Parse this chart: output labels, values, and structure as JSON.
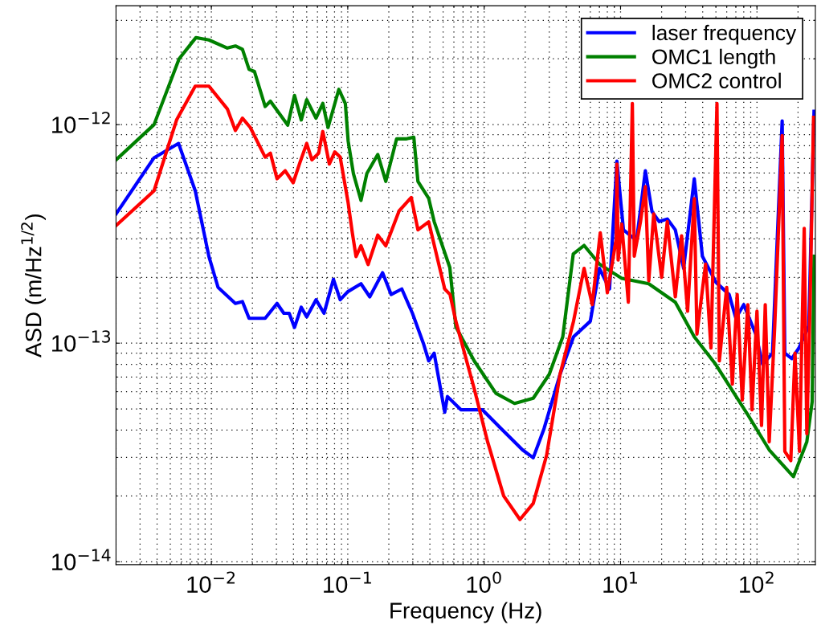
{
  "chart_data": {
    "type": "line",
    "xlabel": "Frequency (Hz)",
    "ylabel": "ASD (m/Hz$^{1/2}$)",
    "log": "xy",
    "grid": true,
    "legend": "top right",
    "line_style": "solid",
    "marker": "none",
    "xlim": [
      0.002,
      268
    ],
    "ylim": [
      9.7e-15,
      3.5e-12
    ],
    "xticks": [
      {
        "value": 0.01,
        "label": "10$^{−2}$"
      },
      {
        "value": 0.1,
        "label": "10$^{−1}$"
      },
      {
        "value": 1,
        "label": "10$^{0}$"
      },
      {
        "value": 10,
        "label": "10$^{1}$"
      },
      {
        "value": 100,
        "label": "10$^{2}$"
      }
    ],
    "yticks": [
      {
        "value": 1e-14,
        "label": "10$^{−14}$"
      },
      {
        "value": 1e-13,
        "label": "10$^{−13}$"
      },
      {
        "value": 1e-12,
        "label": "10$^{−12}$"
      }
    ],
    "series": [
      {
        "name": "laser frequency",
        "color": "#0000ff",
        "x": [
          0.002,
          0.0038,
          0.00575,
          0.00762,
          0.0096,
          0.0112,
          0.015,
          0.0169,
          0.0189,
          0.0248,
          0.0303,
          0.034,
          0.0372,
          0.0407,
          0.0456,
          0.05,
          0.0585,
          0.067,
          0.0785,
          0.088,
          0.1,
          0.125,
          0.145,
          0.18,
          0.208,
          0.249,
          0.298,
          0.358,
          0.392,
          0.43,
          0.514,
          0.538,
          0.675,
          0.97,
          1.33,
          1.91,
          2.29,
          2.75,
          3.6,
          4.52,
          6.0,
          7.0,
          8.3,
          9.4,
          10.5,
          13.1,
          15.2,
          17.0,
          19.2,
          22.0,
          25.2,
          29.0,
          34.7,
          39.8,
          50.0,
          62.5,
          70.0,
          80.0,
          98.0,
          110.0,
          130.0,
          153.0,
          160.0,
          180.0,
          203.0,
          240.0,
          262.0
        ],
        "values": [
          3.9e-13,
          7.05e-13,
          8.2e-13,
          4.98e-13,
          2.49e-13,
          1.8e-13,
          1.52e-13,
          1.55e-13,
          1.3e-13,
          1.3e-13,
          1.52e-13,
          1.37e-13,
          1.37e-13,
          1.18e-13,
          1.46e-13,
          1.32e-13,
          1.58e-13,
          1.37e-13,
          1.96e-13,
          1.58e-13,
          1.72e-13,
          1.87e-13,
          1.63e-13,
          2.1e-13,
          1.67e-13,
          1.77e-13,
          1.37e-13,
          1e-13,
          8.3e-14,
          9e-14,
          4.83e-14,
          5.7e-14,
          4.96e-14,
          4.96e-14,
          4.07e-14,
          3.25e-14,
          2.99e-14,
          4.07e-14,
          7.2e-14,
          1.07e-13,
          1.26e-13,
          2.2e-13,
          1.77e-13,
          6.8e-13,
          3.3e-13,
          2.95e-13,
          6.15e-13,
          4e-13,
          3.6e-13,
          3.7e-13,
          3.3e-13,
          2.2e-13,
          5.65e-13,
          2.5e-13,
          1.9e-13,
          1.67e-13,
          1.3e-13,
          1.5e-13,
          1.1e-13,
          8e-14,
          9e-14,
          1.04e-12,
          9e-14,
          8.5e-14,
          9.5e-14,
          1.2e-13,
          1.15e-12
        ]
      },
      {
        "name": "OMC1 length",
        "color": "#008000",
        "x": [
          0.002,
          0.0038,
          0.0058,
          0.0077,
          0.0096,
          0.0131,
          0.015,
          0.0169,
          0.0189,
          0.0207,
          0.0248,
          0.0271,
          0.0363,
          0.0407,
          0.0456,
          0.05,
          0.0585,
          0.0656,
          0.0717,
          0.086,
          0.096,
          0.1007,
          0.11,
          0.125,
          0.138,
          0.166,
          0.19,
          0.228,
          0.267,
          0.305,
          0.327,
          0.392,
          0.43,
          0.56,
          0.62,
          0.845,
          1.22,
          1.67,
          2.29,
          3.0,
          3.77,
          4.5,
          5.4,
          7.0,
          10.2,
          16.1,
          25.2,
          34.7,
          49.8,
          85.7,
          123.0,
          185.0,
          232.0,
          254.0,
          262.0
        ],
        "values": [
          6.9e-13,
          1e-12,
          2e-12,
          2.5e-12,
          2.44e-12,
          2.24e-12,
          2.29e-12,
          2.21e-12,
          1.79e-12,
          1.75e-12,
          1.21e-12,
          1.28e-12,
          9.95e-13,
          1.36e-12,
          1.05e-12,
          1.3e-12,
          1.07e-12,
          1.25e-12,
          9.7e-13,
          1.45e-12,
          1.25e-12,
          8.4e-13,
          5.97e-13,
          4.5e-13,
          5.97e-13,
          7.3e-13,
          5.5e-13,
          8.6e-13,
          8.6e-13,
          8.75e-13,
          5.5e-13,
          4.6e-13,
          3.6e-13,
          2.22e-13,
          1.19e-13,
          8.3e-14,
          5.9e-14,
          5.3e-14,
          5.6e-14,
          7.2e-14,
          1.07e-13,
          2.56e-13,
          2.8e-13,
          2.3e-13,
          1.98e-13,
          1.87e-13,
          1.54e-13,
          1.07e-13,
          8e-14,
          4.7e-14,
          3.25e-14,
          2.45e-14,
          3.54e-14,
          5.4e-14,
          2.5e-13
        ]
      },
      {
        "name": "OMC2 control",
        "color": "#ff0000",
        "x": [
          0.002,
          0.0038,
          0.00556,
          0.00762,
          0.0096,
          0.0131,
          0.015,
          0.0169,
          0.0193,
          0.0248,
          0.0271,
          0.0303,
          0.0348,
          0.0398,
          0.0446,
          0.05,
          0.0546,
          0.0612,
          0.0656,
          0.0733,
          0.0803,
          0.088,
          0.1007,
          0.108,
          0.115,
          0.125,
          0.141,
          0.166,
          0.19,
          0.238,
          0.292,
          0.327,
          0.392,
          0.514,
          0.562,
          0.62,
          0.845,
          1.06,
          1.39,
          1.83,
          2.29,
          2.87,
          3.6,
          4.52,
          5.4,
          6.2,
          7.1,
          8.0,
          9.3,
          9.4,
          9.6,
          10.2,
          11.4,
          12.2,
          12.6,
          14.0,
          15.2,
          16.1,
          17.5,
          20.0,
          22.0,
          25.2,
          28.0,
          31.0,
          34.7,
          36.3,
          42.0,
          46.0,
          50.9,
          53.0,
          60.0,
          66.0,
          71.6,
          78.0,
          85.7,
          92.0,
          100.0,
          108.0,
          115.0,
          123.0,
          135.0,
          153.0,
          160.0,
          177.0,
          190.0,
          205.0,
          222.0,
          232.0,
          245.0,
          260.0
        ],
        "values": [
          3.45e-13,
          4.98e-13,
          1.05e-12,
          1.5e-12,
          1.5e-12,
          1.18e-12,
          9.4e-13,
          1.07e-12,
          9.7e-13,
          7.1e-13,
          7.4e-13,
          5.65e-13,
          6.15e-13,
          5.42e-13,
          6.7e-13,
          8.2e-13,
          6.9e-13,
          7.4e-13,
          9.3e-13,
          6.6e-13,
          7.5e-13,
          7.1e-13,
          4.38e-13,
          3.2e-13,
          2.49e-13,
          2.79e-13,
          2.29e-13,
          3.12e-13,
          2.79e-13,
          4.03e-13,
          4.64e-13,
          3.3e-13,
          3.59e-13,
          1.77e-13,
          1.67e-13,
          1.26e-13,
          6.2e-14,
          3.54e-14,
          2e-14,
          1.56e-14,
          1.85e-14,
          3.07e-14,
          7.2e-14,
          1.26e-13,
          2.2e-13,
          1.5e-13,
          3.2e-13,
          1.7e-13,
          3e-13,
          6.6e-13,
          2.4e-13,
          3.5e-13,
          1.54e-13,
          1.25e-12,
          2.5e-13,
          3.6e-13,
          5.2e-13,
          1.93e-13,
          3.9e-13,
          2e-13,
          3.6e-13,
          1.63e-13,
          3.1e-13,
          1.4e-13,
          4.58e-13,
          1.1e-13,
          2.3e-13,
          9.5e-14,
          1.25e-12,
          8.3e-14,
          1.8e-13,
          6.5e-14,
          1.67e-13,
          5.5e-14,
          1.5e-13,
          4.96e-14,
          1.4e-13,
          4.2e-14,
          1.5e-13,
          3.54e-14,
          1.2e-13,
          8.9e-13,
          3.2e-14,
          2.9e-14,
          9e-14,
          3.2e-14,
          3.35e-13,
          3.85e-14,
          1.5e-13,
          1.08e-12
        ]
      }
    ]
  }
}
